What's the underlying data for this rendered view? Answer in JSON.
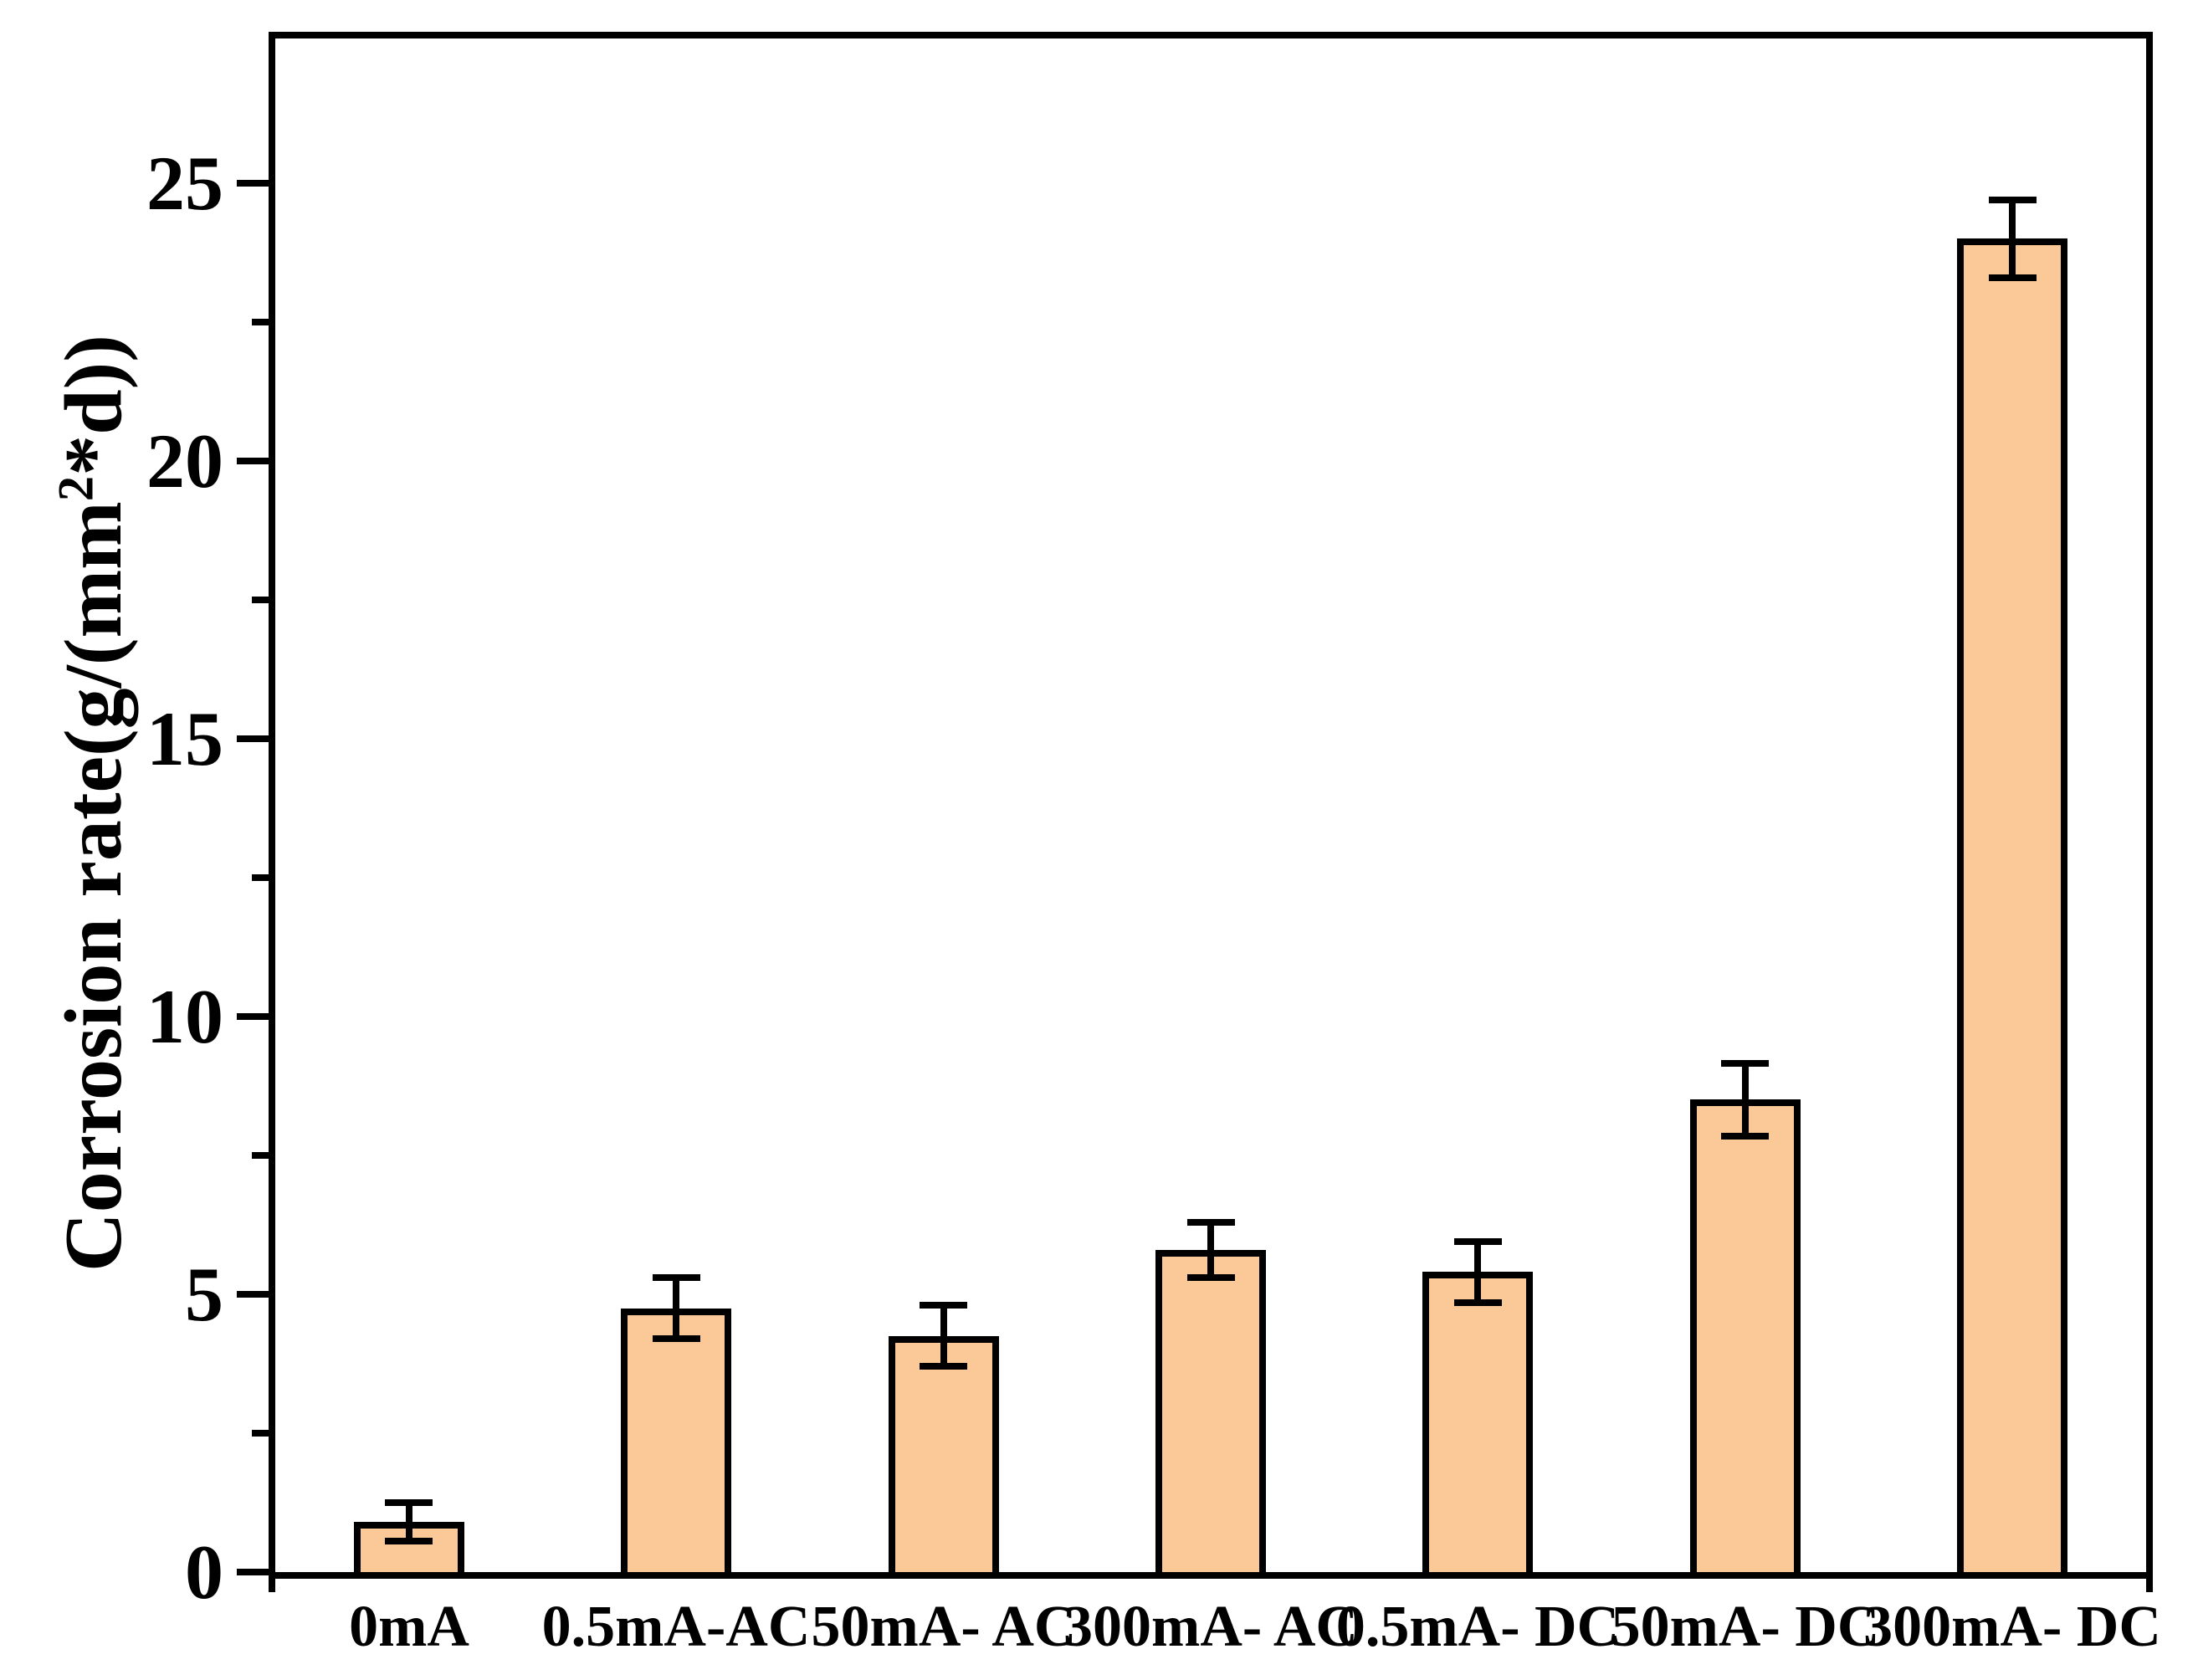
{
  "figure": {
    "background": "#ffffff",
    "axis_color": "#000000",
    "text_color": "#000000"
  },
  "chart_data": {
    "type": "bar",
    "title": "",
    "ylabel": "Corrosion rate(g/(mm2*d))",
    "ylabel_parts": {
      "prefix": "Corrosion rate(g/(mm",
      "superscript": "2",
      "suffix": "*d))"
    },
    "xlabel": "",
    "categories": [
      "0mA",
      "0.5mA-AC",
      "50mA- AC",
      "300mA- AC",
      "0.5mA- DC",
      "50mA- DC",
      "300mA- DC"
    ],
    "values": [
      0.9,
      4.75,
      4.25,
      5.8,
      5.4,
      8.5,
      24.0
    ],
    "errors": [
      0.35,
      0.55,
      0.55,
      0.5,
      0.55,
      0.65,
      0.7
    ],
    "ylim": [
      0,
      27.6
    ],
    "yticks_major": [
      0,
      5,
      10,
      15,
      20,
      25
    ],
    "ytick_labels": [
      "0",
      "5",
      "10",
      "15",
      "20",
      "25"
    ],
    "yticks_minor": [
      2.5,
      7.5,
      12.5,
      17.5,
      22.5
    ],
    "grid": false,
    "legend": null,
    "bar_fill": "#FBC997",
    "bar_edge": "#000000",
    "error_color": "#000000"
  }
}
